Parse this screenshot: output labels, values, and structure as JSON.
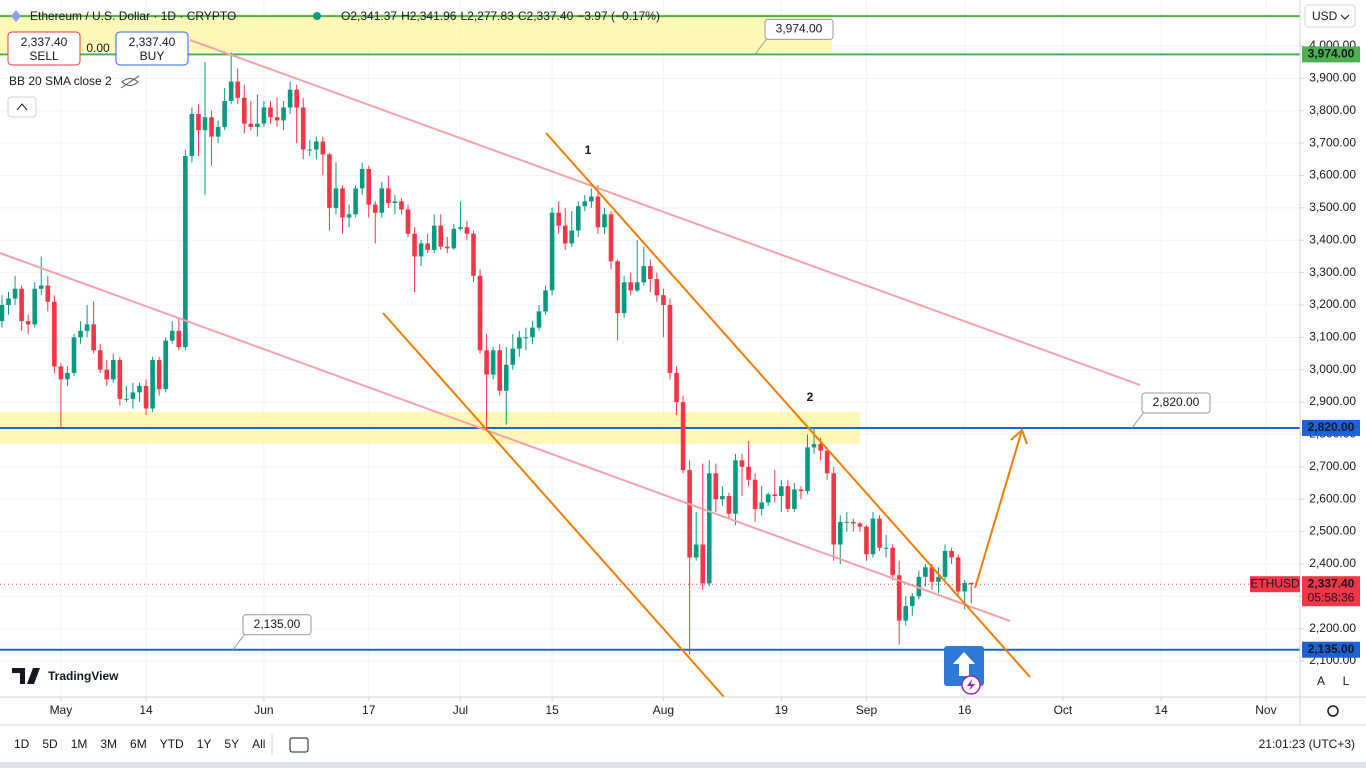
{
  "chart_data": {
    "type": "candlestick",
    "title": "Ethereum / U.S. Dollar · 1D · CRYPTO",
    "ohlc": [
      {
        "label": "O",
        "value": "2,341.37"
      },
      {
        "label": "H",
        "value": "2,341.96"
      },
      {
        "label": "L",
        "value": "2,277.83"
      },
      {
        "label": "C",
        "value": "2,337.40"
      }
    ],
    "change": "−3.97 (−0.17%)",
    "currency": "USD",
    "indicator": "BB 20 SMA close 2",
    "trade": {
      "sell_price": "2,337.40",
      "sell": "SELL",
      "spread": "0.00",
      "buy_price": "2,337.40",
      "buy": "BUY"
    },
    "symbol": "ETHUSD",
    "last_price": {
      "value": 2337.4,
      "label": "2,337.40"
    },
    "countdown": "05:58:36",
    "up_color": "#089981",
    "down_color": "#f23645",
    "candles": [
      [
        3150,
        3230,
        3130,
        3200
      ],
      [
        3200,
        3240,
        3170,
        3220
      ],
      [
        3220,
        3290,
        3200,
        3250
      ],
      [
        3250,
        3260,
        3120,
        3150
      ],
      [
        3150,
        3170,
        3110,
        3140
      ],
      [
        3140,
        3270,
        3130,
        3250
      ],
      [
        3250,
        3350,
        3230,
        3260
      ],
      [
        3260,
        3290,
        3180,
        3210
      ],
      [
        3210,
        3230,
        2990,
        3010
      ],
      [
        3010,
        3020,
        2820,
        2970
      ],
      [
        2970,
        3010,
        2950,
        2990
      ],
      [
        2990,
        3110,
        2980,
        3100
      ],
      [
        3100,
        3150,
        3080,
        3120
      ],
      [
        3120,
        3200,
        3100,
        3140
      ],
      [
        3140,
        3210,
        3050,
        3060
      ],
      [
        3060,
        3080,
        2990,
        3000
      ],
      [
        3000,
        3030,
        2950,
        2970
      ],
      [
        2970,
        3050,
        2960,
        3030
      ],
      [
        3030,
        3040,
        2890,
        2910
      ],
      [
        2910,
        2950,
        2900,
        2910
      ],
      [
        2910,
        2960,
        2880,
        2930
      ],
      [
        2930,
        2960,
        2900,
        2950
      ],
      [
        2950,
        2970,
        2860,
        2880
      ],
      [
        2880,
        3040,
        2870,
        3030
      ],
      [
        3030,
        3040,
        2920,
        2940
      ],
      [
        2940,
        3100,
        2930,
        3090
      ],
      [
        3090,
        3150,
        3080,
        3120
      ],
      [
        3120,
        3160,
        3060,
        3070
      ],
      [
        3070,
        3680,
        3060,
        3660
      ],
      [
        3660,
        3810,
        3640,
        3790
      ],
      [
        3790,
        3820,
        3660,
        3740
      ],
      [
        3740,
        3950,
        3540,
        3780
      ],
      [
        3780,
        3800,
        3630,
        3720
      ],
      [
        3720,
        3770,
        3700,
        3750
      ],
      [
        3750,
        3870,
        3740,
        3830
      ],
      [
        3830,
        3980,
        3820,
        3890
      ],
      [
        3890,
        3930,
        3820,
        3840
      ],
      [
        3840,
        3880,
        3730,
        3760
      ],
      [
        3760,
        3830,
        3740,
        3750
      ],
      [
        3750,
        3850,
        3720,
        3760
      ],
      [
        3760,
        3830,
        3750,
        3810
      ],
      [
        3810,
        3830,
        3760,
        3780
      ],
      [
        3780,
        3840,
        3750,
        3770
      ],
      [
        3770,
        3830,
        3740,
        3810
      ],
      [
        3810,
        3890,
        3790,
        3865
      ],
      [
        3865,
        3880,
        3700,
        3810
      ],
      [
        3810,
        3840,
        3650,
        3680
      ],
      [
        3680,
        3710,
        3660,
        3680
      ],
      [
        3680,
        3720,
        3650,
        3705
      ],
      [
        3705,
        3720,
        3600,
        3665
      ],
      [
        3665,
        3670,
        3430,
        3500
      ],
      [
        3500,
        3640,
        3480,
        3560
      ],
      [
        3560,
        3570,
        3420,
        3470
      ],
      [
        3470,
        3510,
        3440,
        3480
      ],
      [
        3480,
        3570,
        3470,
        3560
      ],
      [
        3560,
        3640,
        3540,
        3620
      ],
      [
        3620,
        3630,
        3470,
        3510
      ],
      [
        3510,
        3520,
        3390,
        3485
      ],
      [
        3485,
        3580,
        3470,
        3560
      ],
      [
        3560,
        3600,
        3500,
        3515
      ],
      [
        3515,
        3540,
        3480,
        3520
      ],
      [
        3520,
        3530,
        3480,
        3495
      ],
      [
        3495,
        3510,
        3410,
        3420
      ],
      [
        3420,
        3440,
        3240,
        3350
      ],
      [
        3350,
        3400,
        3320,
        3390
      ],
      [
        3390,
        3420,
        3360,
        3370
      ],
      [
        3370,
        3480,
        3360,
        3445
      ],
      [
        3445,
        3480,
        3370,
        3380
      ],
      [
        3380,
        3410,
        3360,
        3375
      ],
      [
        3375,
        3450,
        3370,
        3435
      ],
      [
        3435,
        3520,
        3430,
        3440
      ],
      [
        3440,
        3460,
        3400,
        3420
      ],
      [
        3420,
        3430,
        3270,
        3290
      ],
      [
        3290,
        3310,
        3050,
        3060
      ],
      [
        3060,
        3110,
        2820,
        2985
      ],
      [
        2985,
        3070,
        2970,
        3060
      ],
      [
        3060,
        3080,
        2920,
        2935
      ],
      [
        2935,
        3070,
        2830,
        3015
      ],
      [
        3015,
        3110,
        3000,
        3065
      ],
      [
        3065,
        3120,
        3040,
        3100
      ],
      [
        3100,
        3130,
        3060,
        3100
      ],
      [
        3100,
        3150,
        3080,
        3130
      ],
      [
        3130,
        3200,
        3120,
        3180
      ],
      [
        3180,
        3260,
        3170,
        3245
      ],
      [
        3245,
        3500,
        3230,
        3485
      ],
      [
        3485,
        3520,
        3420,
        3445
      ],
      [
        3445,
        3500,
        3370,
        3390
      ],
      [
        3390,
        3490,
        3380,
        3430
      ],
      [
        3430,
        3520,
        3410,
        3505
      ],
      [
        3505,
        3540,
        3490,
        3520
      ],
      [
        3520,
        3560,
        3500,
        3535
      ],
      [
        3535,
        3570,
        3420,
        3440
      ],
      [
        3440,
        3500,
        3420,
        3480
      ],
      [
        3480,
        3490,
        3310,
        3335
      ],
      [
        3335,
        3340,
        3090,
        3175
      ],
      [
        3175,
        3290,
        3160,
        3270
      ],
      [
        3270,
        3300,
        3230,
        3245
      ],
      [
        3245,
        3400,
        3240,
        3270
      ],
      [
        3270,
        3380,
        3260,
        3320
      ],
      [
        3320,
        3340,
        3240,
        3280
      ],
      [
        3280,
        3300,
        3210,
        3230
      ],
      [
        3230,
        3250,
        3100,
        3200
      ],
      [
        3200,
        3220,
        2970,
        2990
      ],
      [
        2990,
        3010,
        2860,
        2900
      ],
      [
        2900,
        2920,
        2680,
        2690
      ],
      [
        2690,
        2720,
        2120,
        2420
      ],
      [
        2420,
        2560,
        2410,
        2460
      ],
      [
        2460,
        2710,
        2320,
        2340
      ],
      [
        2340,
        2720,
        2330,
        2680
      ],
      [
        2680,
        2710,
        2560,
        2600
      ],
      [
        2600,
        2640,
        2580,
        2610
      ],
      [
        2610,
        2620,
        2540,
        2555
      ],
      [
        2555,
        2740,
        2520,
        2720
      ],
      [
        2720,
        2740,
        2610,
        2700
      ],
      [
        2700,
        2780,
        2640,
        2660
      ],
      [
        2660,
        2680,
        2530,
        2570
      ],
      [
        2570,
        2640,
        2550,
        2590
      ],
      [
        2590,
        2620,
        2580,
        2615
      ],
      [
        2615,
        2690,
        2590,
        2610
      ],
      [
        2610,
        2660,
        2560,
        2640
      ],
      [
        2640,
        2660,
        2560,
        2570
      ],
      [
        2570,
        2650,
        2560,
        2630
      ],
      [
        2630,
        2640,
        2600,
        2625
      ],
      [
        2625,
        2800,
        2615,
        2760
      ],
      [
        2760,
        2820,
        2740,
        2770
      ],
      [
        2770,
        2790,
        2720,
        2750
      ],
      [
        2750,
        2760,
        2660,
        2680
      ],
      [
        2680,
        2700,
        2410,
        2460
      ],
      [
        2460,
        2550,
        2400,
        2530
      ],
      [
        2530,
        2560,
        2500,
        2530
      ],
      [
        2530,
        2540,
        2500,
        2525
      ],
      [
        2525,
        2530,
        2500,
        2515
      ],
      [
        2515,
        2520,
        2410,
        2430
      ],
      [
        2430,
        2560,
        2420,
        2540
      ],
      [
        2540,
        2550,
        2440,
        2450
      ],
      [
        2450,
        2490,
        2420,
        2450
      ],
      [
        2450,
        2460,
        2350,
        2365
      ],
      [
        2365,
        2410,
        2150,
        2225
      ],
      [
        2225,
        2300,
        2210,
        2270
      ],
      [
        2270,
        2310,
        2240,
        2300
      ],
      [
        2300,
        2380,
        2290,
        2360
      ],
      [
        2360,
        2400,
        2330,
        2390
      ],
      [
        2390,
        2400,
        2320,
        2345
      ],
      [
        2345,
        2390,
        2310,
        2360
      ],
      [
        2360,
        2460,
        2350,
        2440
      ],
      [
        2440,
        2450,
        2400,
        2420
      ],
      [
        2420,
        2430,
        2300,
        2315
      ],
      [
        2315,
        2350,
        2260,
        2341.37
      ],
      [
        2341.37,
        2341.96,
        2277.83,
        2337.4
      ]
    ],
    "ylim": [
      1989,
      4142
    ],
    "yticks": [
      {
        "value": 2100,
        "label": "2,100.00"
      },
      {
        "value": 2200,
        "label": "2,200.00"
      },
      {
        "value": 2300,
        "label": "2,300.00"
      },
      {
        "value": 2400,
        "label": "2,400.00"
      },
      {
        "value": 2500,
        "label": "2,500.00"
      },
      {
        "value": 2600,
        "label": "2,600.00"
      },
      {
        "value": 2700,
        "label": "2,700.00"
      },
      {
        "value": 2800,
        "label": "2,800.00"
      },
      {
        "value": 2900,
        "label": "2,900.00"
      },
      {
        "value": 3000,
        "label": "3,000.00"
      },
      {
        "value": 3100,
        "label": "3,100.00"
      },
      {
        "value": 3200,
        "label": "3,200.00"
      },
      {
        "value": 3300,
        "label": "3,300.00"
      },
      {
        "value": 3400,
        "label": "3,400.00"
      },
      {
        "value": 3500,
        "label": "3,500.00"
      },
      {
        "value": 3600,
        "label": "3,600.00"
      },
      {
        "value": 3700,
        "label": "3,700.00"
      },
      {
        "value": 3800,
        "label": "3,800.00"
      },
      {
        "value": 3900,
        "label": "3,900.00"
      },
      {
        "value": 4000,
        "label": "4,000.00"
      }
    ],
    "xlim": [
      -0.3,
      198.2
    ],
    "xticks": [
      {
        "value": 9,
        "label": "May"
      },
      {
        "value": 22,
        "label": "14"
      },
      {
        "value": 40,
        "label": "Jun"
      },
      {
        "value": 56,
        "label": "17"
      },
      {
        "value": 70,
        "label": "Jul"
      },
      {
        "value": 84,
        "label": "15"
      },
      {
        "value": 101,
        "label": "Aug"
      },
      {
        "value": 119,
        "label": "19"
      },
      {
        "value": 132,
        "label": "Sep"
      },
      {
        "value": 147,
        "label": "16"
      },
      {
        "value": 162,
        "label": "Oct"
      },
      {
        "value": 177,
        "label": "14"
      },
      {
        "value": 193,
        "label": "Nov"
      }
    ],
    "levels": [
      {
        "value": 4092,
        "color": "#4caf50"
      },
      {
        "value": 3974,
        "label": "3,974.00",
        "color": "#4caf50"
      },
      {
        "value": 2820,
        "label": "2,820.00",
        "color": "#1e63d6"
      },
      {
        "value": 2135,
        "label": "2,135.00",
        "color": "#1e63d6"
      }
    ],
    "annotations": [
      "1",
      "2"
    ],
    "grid": true
  },
  "ui": {
    "logo": "TradingView",
    "ranges": [
      "1D",
      "5D",
      "1M",
      "3M",
      "6M",
      "YTD",
      "1Y",
      "5Y",
      "All"
    ],
    "clock": "21:01:23 (UTC+3)",
    "scale_buttons": [
      "A",
      "L"
    ]
  }
}
